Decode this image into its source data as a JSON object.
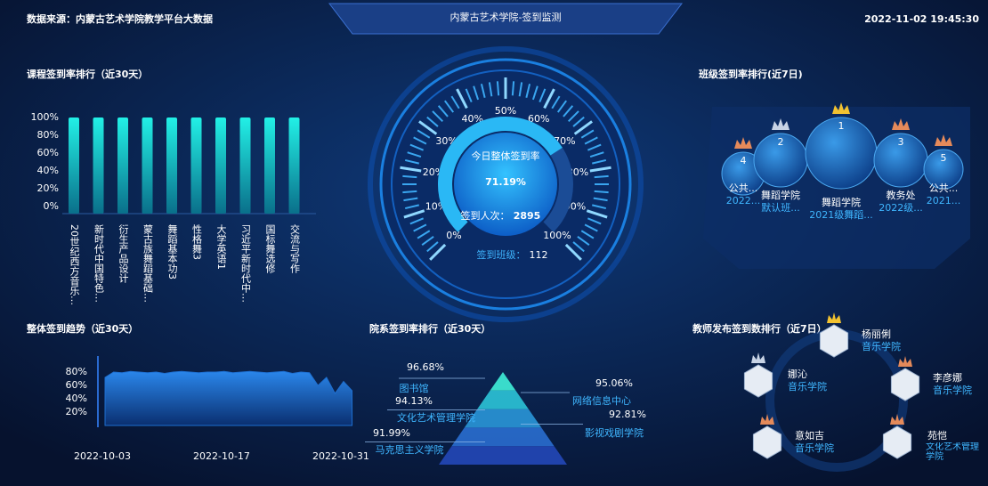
{
  "header": {
    "source": "数据来源：内蒙古艺术学院教学平台大数据",
    "title": "内蒙古艺术学院-签到监测",
    "datetime": "2022-11-02 19:45:30"
  },
  "course_chart": {
    "type": "bar",
    "title": "课程签到率排行（近30天）",
    "color": "#1de9e0",
    "categories": [
      "20世纪西方音乐…",
      "新时代中国特色…",
      "衍生产品设计",
      "蒙古族舞蹈基础…",
      "舞蹈基本功3",
      "性格舞3",
      "大学英语1",
      "习近平新时代中…",
      "国标舞选修",
      "交流与写作"
    ],
    "values": [
      100,
      100,
      100,
      100,
      100,
      100,
      100,
      100,
      100,
      100
    ],
    "ylim": [
      0,
      100
    ],
    "yticks": [
      {
        "value": 0,
        "label": "0%"
      },
      {
        "value": 20,
        "label": "20%"
      },
      {
        "value": 40,
        "label": "40%"
      },
      {
        "value": 60,
        "label": "60%"
      },
      {
        "value": 80,
        "label": "80%"
      },
      {
        "value": 100,
        "label": "100%"
      }
    ]
  },
  "gauge": {
    "type": "gauge",
    "title": "今日整体签到率",
    "value": 71.19,
    "value_label": "71.19%",
    "range": [
      0,
      100
    ],
    "checkins_label": "签到人次：",
    "checkins": 2895,
    "classes_label": "签到班级：",
    "classes": 112,
    "ticks": [
      {
        "value": 0,
        "label": "0%"
      },
      {
        "value": 10,
        "label": "10%"
      },
      {
        "value": 20,
        "label": "20%"
      },
      {
        "value": 30,
        "label": "30%"
      },
      {
        "value": 40,
        "label": "40%"
      },
      {
        "value": 50,
        "label": "50%"
      },
      {
        "value": 60,
        "label": "60%"
      },
      {
        "value": 70,
        "label": "70%"
      },
      {
        "value": 80,
        "label": "80%"
      },
      {
        "value": 90,
        "label": "90%"
      },
      {
        "value": 100,
        "label": "100%"
      }
    ]
  },
  "class_ranking": {
    "title": "班级签到率排行(近7日)",
    "items": [
      {
        "rank": 4,
        "org": "公共...",
        "class": "2022..."
      },
      {
        "rank": 2,
        "org": "舞蹈学院",
        "class": "默认班..."
      },
      {
        "rank": 1,
        "org": "舞蹈学院",
        "class": "2021级舞蹈..."
      },
      {
        "rank": 3,
        "org": "教务处",
        "class": "2022级..."
      },
      {
        "rank": 5,
        "org": "公共...",
        "class": "2021..."
      }
    ]
  },
  "trend_chart": {
    "type": "area",
    "title": "整体签到趋势（近30天）",
    "color": "#1e6fd0",
    "categories": [
      "2022-10-03",
      null,
      null,
      null,
      null,
      null,
      null,
      null,
      null,
      null,
      null,
      null,
      null,
      null,
      "2022-10-17",
      null,
      null,
      null,
      null,
      null,
      null,
      null,
      null,
      null,
      null,
      null,
      null,
      null,
      "2022-10-31",
      null
    ],
    "values": [
      72,
      80,
      79,
      81,
      80,
      79,
      80,
      78,
      80,
      81,
      80,
      79,
      80,
      80,
      81,
      79,
      80,
      81,
      80,
      79,
      80,
      81,
      78,
      80,
      79,
      60,
      72,
      48,
      66,
      52
    ],
    "ylim": [
      0,
      100
    ],
    "yticks": [
      {
        "value": 20,
        "label": "20%"
      },
      {
        "value": 40,
        "label": "40%"
      },
      {
        "value": 60,
        "label": "60%"
      },
      {
        "value": 80,
        "label": "80%"
      }
    ]
  },
  "department_chart": {
    "type": "pyramid",
    "title": "院系签到率排行（近30天）",
    "categories": [
      "图书馆",
      "网络信息中心",
      "文化艺术管理学院",
      "影视戏剧学院",
      "马克思主义学院"
    ],
    "values": [
      96.68,
      95.06,
      94.13,
      92.81,
      91.99
    ],
    "value_labels": [
      "96.68%",
      "95.06%",
      "94.13%",
      "92.81%",
      "91.99%"
    ]
  },
  "teacher_ranking": {
    "title": "教师发布签到数排行（近7日）",
    "items": [
      {
        "name": "杨丽俐",
        "dept": "音乐学院"
      },
      {
        "name": "娜沁",
        "dept": "音乐学院"
      },
      {
        "name": "李彦娜",
        "dept": "音乐学院"
      },
      {
        "name": "意如吉",
        "dept": "音乐学院"
      },
      {
        "name": "苑恺",
        "dept": "文化艺术管理学院"
      }
    ]
  }
}
